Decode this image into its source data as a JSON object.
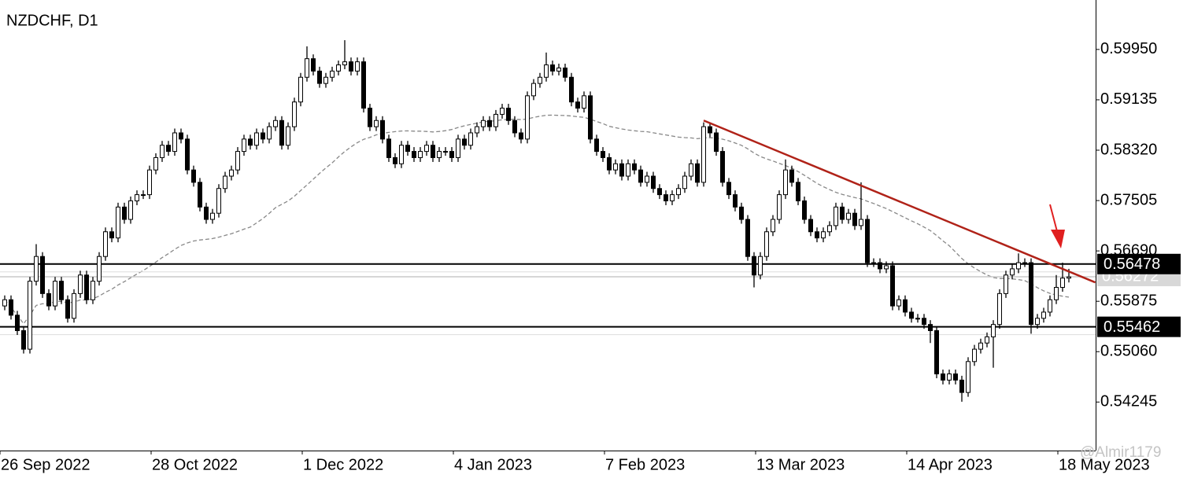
{
  "chart_data": {
    "type": "candlestick",
    "title": "NZDCHF, D1",
    "categories": [
      "26 Sep 2022",
      null,
      null,
      null,
      null,
      null,
      null,
      null,
      null,
      null,
      null,
      null,
      null,
      null,
      null,
      null,
      null,
      null,
      null,
      null,
      null,
      null,
      null,
      null,
      "28 Oct 2022",
      null,
      null,
      null,
      null,
      null,
      null,
      null,
      null,
      null,
      null,
      null,
      null,
      null,
      null,
      null,
      null,
      null,
      null,
      null,
      null,
      null,
      null,
      null,
      "1 Dec 2022",
      null,
      null,
      null,
      null,
      null,
      null,
      null,
      null,
      null,
      null,
      null,
      null,
      null,
      null,
      null,
      null,
      null,
      null,
      null,
      null,
      null,
      null,
      null,
      "4 Jan 2023",
      null,
      null,
      null,
      null,
      null,
      null,
      null,
      null,
      null,
      null,
      null,
      null,
      null,
      null,
      null,
      null,
      null,
      null,
      null,
      null,
      null,
      null,
      null,
      "7 Feb 2023",
      null,
      null,
      null,
      null,
      null,
      null,
      null,
      null,
      null,
      null,
      null,
      null,
      null,
      null,
      null,
      null,
      null,
      null,
      null,
      null,
      null,
      null,
      null,
      "13 Mar 2023",
      null,
      null,
      null,
      null,
      null,
      null,
      null,
      null,
      null,
      null,
      null,
      null,
      null,
      null,
      null,
      null,
      null,
      null,
      null,
      null,
      null,
      null,
      null,
      "14 Apr 2023",
      null,
      null,
      null,
      null,
      null,
      null,
      null,
      null,
      null,
      null,
      null,
      null,
      null,
      null,
      null,
      null,
      null,
      null,
      null,
      null,
      null,
      null,
      null,
      "18 May 2023",
      null
    ],
    "open": [
      0.558,
      0.559,
      0.5565,
      0.554,
      0.551,
      0.562,
      0.566,
      0.56,
      0.558,
      0.562,
      0.559,
      0.556,
      0.56,
      0.563,
      0.559,
      0.562,
      0.566,
      0.57,
      0.569,
      0.574,
      0.572,
      0.575,
      0.576,
      0.576,
      0.58,
      0.582,
      0.584,
      0.583,
      0.586,
      0.585,
      0.58,
      0.578,
      0.574,
      0.572,
      0.573,
      0.577,
      0.579,
      0.58,
      0.583,
      0.585,
      0.584,
      0.586,
      0.585,
      0.587,
      0.588,
      0.584,
      0.587,
      0.591,
      0.595,
      0.598,
      0.596,
      0.594,
      0.595,
      0.596,
      0.597,
      0.5975,
      0.596,
      0.5975,
      0.59,
      0.587,
      0.588,
      0.585,
      0.582,
      0.581,
      0.584,
      0.583,
      0.582,
      0.583,
      0.584,
      0.582,
      0.583,
      0.583,
      0.582,
      0.585,
      0.584,
      0.586,
      0.587,
      0.588,
      0.587,
      0.589,
      0.59,
      0.588,
      0.586,
      0.585,
      0.592,
      0.594,
      0.595,
      0.597,
      0.596,
      0.5965,
      0.595,
      0.591,
      0.59,
      0.592,
      0.585,
      0.583,
      0.582,
      0.58,
      0.581,
      0.579,
      0.581,
      0.58,
      0.578,
      0.579,
      0.577,
      0.576,
      0.575,
      0.576,
      0.577,
      0.579,
      0.581,
      0.578,
      0.587,
      0.586,
      0.583,
      0.578,
      0.576,
      0.574,
      0.572,
      0.566,
      0.563,
      0.566,
      0.57,
      0.572,
      0.576,
      0.58,
      0.578,
      0.575,
      0.572,
      0.57,
      0.569,
      0.57,
      0.571,
      0.574,
      0.572,
      0.573,
      0.571,
      0.572,
      0.565,
      0.565,
      0.564,
      0.5645,
      0.558,
      0.559,
      0.557,
      0.556,
      0.556,
      0.555,
      0.554,
      0.547,
      0.546,
      0.547,
      0.546,
      0.544,
      0.549,
      0.551,
      0.552,
      0.553,
      0.555,
      0.56,
      0.563,
      0.564,
      0.565,
      0.565,
      0.555,
      0.556,
      0.557,
      0.559,
      0.561,
      0.5625
    ],
    "high": [
      0.5597,
      0.5597,
      0.5572,
      0.5547,
      0.5627,
      0.568,
      0.5667,
      0.5607,
      0.5627,
      0.5627,
      0.5597,
      0.5607,
      0.5637,
      0.5637,
      0.5627,
      0.5667,
      0.5707,
      0.5707,
      0.5747,
      0.5747,
      0.5757,
      0.5767,
      0.5767,
      0.5807,
      0.5827,
      0.5847,
      0.5847,
      0.5867,
      0.5867,
      0.5857,
      0.5807,
      0.5787,
      0.5747,
      0.5737,
      0.5777,
      0.5797,
      0.5807,
      0.5837,
      0.5857,
      0.5857,
      0.5867,
      0.5867,
      0.5877,
      0.5887,
      0.5887,
      0.5877,
      0.5917,
      0.5957,
      0.6,
      0.5987,
      0.5967,
      0.5957,
      0.5967,
      0.5977,
      0.601,
      0.5982,
      0.5982,
      0.5982,
      0.5907,
      0.5887,
      0.5887,
      0.5857,
      0.5827,
      0.5847,
      0.5847,
      0.5837,
      0.5837,
      0.5847,
      0.5847,
      0.5837,
      0.5837,
      0.5837,
      0.5857,
      0.5857,
      0.5867,
      0.5877,
      0.5887,
      0.5887,
      0.5897,
      0.5907,
      0.5907,
      0.5887,
      0.5867,
      0.5927,
      0.5947,
      0.5957,
      0.599,
      0.5977,
      0.5972,
      0.5972,
      0.5957,
      0.5917,
      0.5927,
      0.5927,
      0.5857,
      0.5837,
      0.5827,
      0.5817,
      0.5817,
      0.5817,
      0.5817,
      0.5807,
      0.5797,
      0.5797,
      0.5777,
      0.5767,
      0.5767,
      0.5777,
      0.5797,
      0.5817,
      0.5817,
      0.5877,
      0.5877,
      0.5867,
      0.5837,
      0.5787,
      0.5767,
      0.5747,
      0.5727,
      0.5667,
      0.5667,
      0.5707,
      0.5727,
      0.5767,
      0.5817,
      0.5807,
      0.5787,
      0.5757,
      0.5727,
      0.5707,
      0.5707,
      0.5717,
      0.5747,
      0.5747,
      0.5737,
      0.5737,
      0.578,
      0.5727,
      0.5657,
      0.5657,
      0.5652,
      0.5652,
      0.5597,
      0.5597,
      0.5577,
      0.5567,
      0.5567,
      0.5557,
      0.5547,
      0.5477,
      0.5477,
      0.5477,
      0.5467,
      0.5497,
      0.5517,
      0.5527,
      0.5537,
      0.5557,
      0.5607,
      0.5637,
      0.5647,
      0.5665,
      0.5657,
      0.5657,
      0.5567,
      0.5577,
      0.5597,
      0.563,
      0.565,
      0.564
    ],
    "low": [
      0.5573,
      0.5558,
      0.5533,
      0.5503,
      0.5503,
      0.5613,
      0.5593,
      0.5573,
      0.5573,
      0.5583,
      0.5553,
      0.5553,
      0.5593,
      0.5583,
      0.5583,
      0.5613,
      0.5653,
      0.5683,
      0.5683,
      0.5713,
      0.5713,
      0.5743,
      0.5753,
      0.5753,
      0.5793,
      0.5813,
      0.5823,
      0.5823,
      0.5843,
      0.5793,
      0.5773,
      0.5733,
      0.5713,
      0.5713,
      0.5723,
      0.5763,
      0.5783,
      0.5793,
      0.5823,
      0.5833,
      0.5833,
      0.5843,
      0.5843,
      0.5863,
      0.5833,
      0.5833,
      0.5863,
      0.5903,
      0.5943,
      0.5953,
      0.5933,
      0.5933,
      0.5943,
      0.5953,
      0.5963,
      0.5953,
      0.5953,
      0.5893,
      0.5863,
      0.5863,
      0.5843,
      0.5813,
      0.5803,
      0.5803,
      0.5823,
      0.5813,
      0.5813,
      0.5823,
      0.5813,
      0.5813,
      0.5823,
      0.5813,
      0.5813,
      0.5833,
      0.5833,
      0.5853,
      0.5863,
      0.5863,
      0.5863,
      0.5883,
      0.5873,
      0.5853,
      0.5843,
      0.5843,
      0.5913,
      0.5933,
      0.5943,
      0.5953,
      0.5953,
      0.5943,
      0.5903,
      0.5893,
      0.5893,
      0.5843,
      0.5823,
      0.5813,
      0.5793,
      0.5793,
      0.5783,
      0.5783,
      0.5793,
      0.5773,
      0.5773,
      0.5763,
      0.5753,
      0.5743,
      0.5743,
      0.5753,
      0.5763,
      0.5783,
      0.5773,
      0.5773,
      0.5853,
      0.5823,
      0.5773,
      0.5753,
      0.5733,
      0.5713,
      0.5653,
      0.561,
      0.5623,
      0.5653,
      0.5693,
      0.5713,
      0.5753,
      0.5773,
      0.5743,
      0.5713,
      0.5693,
      0.5683,
      0.5683,
      0.5693,
      0.5703,
      0.5713,
      0.5713,
      0.5703,
      0.5703,
      0.5643,
      0.5643,
      0.5633,
      0.5633,
      0.5573,
      0.5573,
      0.5563,
      0.5553,
      0.5553,
      0.5543,
      0.552,
      0.5463,
      0.5453,
      0.5453,
      0.5453,
      0.5425,
      0.5433,
      0.5483,
      0.5503,
      0.5513,
      0.548,
      0.5543,
      0.5593,
      0.5623,
      0.5633,
      0.5643,
      0.5535,
      0.5543,
      0.5553,
      0.5563,
      0.5583,
      0.5603,
      0.5618
    ],
    "close": [
      0.559,
      0.5565,
      0.554,
      0.551,
      0.562,
      0.566,
      0.56,
      0.558,
      0.562,
      0.559,
      0.556,
      0.56,
      0.563,
      0.559,
      0.562,
      0.566,
      0.57,
      0.569,
      0.574,
      0.572,
      0.575,
      0.576,
      0.576,
      0.58,
      0.582,
      0.584,
      0.583,
      0.586,
      0.585,
      0.58,
      0.578,
      0.574,
      0.572,
      0.573,
      0.577,
      0.579,
      0.58,
      0.583,
      0.585,
      0.584,
      0.586,
      0.585,
      0.587,
      0.588,
      0.584,
      0.587,
      0.591,
      0.595,
      0.598,
      0.596,
      0.594,
      0.595,
      0.596,
      0.597,
      0.5975,
      0.596,
      0.5975,
      0.59,
      0.587,
      0.588,
      0.585,
      0.582,
      0.581,
      0.584,
      0.583,
      0.582,
      0.583,
      0.584,
      0.582,
      0.583,
      0.583,
      0.582,
      0.585,
      0.584,
      0.586,
      0.587,
      0.588,
      0.587,
      0.589,
      0.59,
      0.588,
      0.586,
      0.585,
      0.592,
      0.594,
      0.595,
      0.597,
      0.596,
      0.5965,
      0.595,
      0.591,
      0.59,
      0.592,
      0.585,
      0.583,
      0.582,
      0.58,
      0.581,
      0.579,
      0.581,
      0.58,
      0.578,
      0.579,
      0.577,
      0.576,
      0.575,
      0.576,
      0.577,
      0.579,
      0.581,
      0.578,
      0.587,
      0.586,
      0.583,
      0.578,
      0.576,
      0.574,
      0.572,
      0.566,
      0.563,
      0.566,
      0.57,
      0.572,
      0.576,
      0.58,
      0.578,
      0.575,
      0.572,
      0.57,
      0.569,
      0.57,
      0.571,
      0.574,
      0.572,
      0.573,
      0.571,
      0.572,
      0.565,
      0.565,
      0.564,
      0.5645,
      0.558,
      0.559,
      0.557,
      0.556,
      0.556,
      0.555,
      0.554,
      0.547,
      0.546,
      0.547,
      0.546,
      0.544,
      0.549,
      0.551,
      0.552,
      0.553,
      0.555,
      0.56,
      0.563,
      0.564,
      0.565,
      0.565,
      0.555,
      0.556,
      0.557,
      0.559,
      0.561,
      0.5625,
      0.5627
    ],
    "ylim": [
      0.5346,
      0.6075
    ],
    "yticks": [
      0.54245,
      {
        "value": 0.5506,
        "label": "0.55060"
      },
      0.55875,
      {
        "value": 0.5669,
        "label": "0.56690"
      },
      0.57505,
      {
        "value": 0.5832,
        "label": "0.58320"
      },
      0.59135,
      {
        "value": 0.5995,
        "label": "0.59950"
      }
    ],
    "levels": [
      0.56478,
      0.55462
    ],
    "current_price": 0.56272,
    "trendline": [
      {
        "index": 111,
        "price": 0.588
      },
      {
        "index": 173.2,
        "price": 0.5618
      }
    ],
    "watermark": "@Almir1179"
  }
}
